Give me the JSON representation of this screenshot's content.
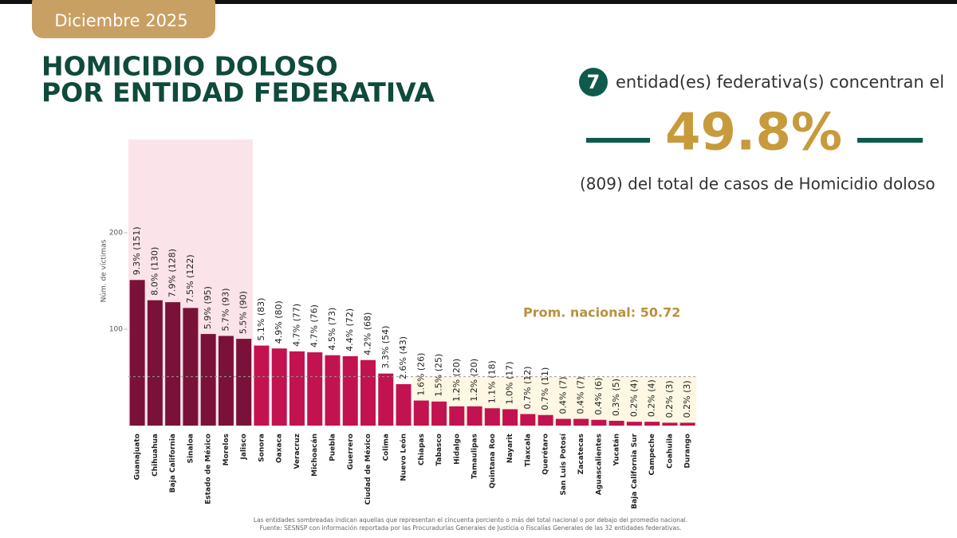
{
  "header": {
    "badge": "Diciembre 2025",
    "title_lines": [
      "HOMICIDIO DOLOSO",
      "POR ENTIDAD FEDERATIVA"
    ],
    "summary_count": "7",
    "summary_text": "entidad(es) federativa(s) concentran el",
    "summary_share": "49.8%",
    "summary_detail": "(809) del total de casos de Homicidio doloso"
  },
  "chart_data": {
    "type": "bar",
    "y_label": "Núm. de víctimas",
    "categories": [
      "Guanajuato",
      "Chihuahua",
      "Baja California",
      "Sinaloa",
      "Estado de México",
      "Morelos",
      "Jalisco",
      "Sonora",
      "Oaxaca",
      "Veracruz",
      "Michoacán",
      "Puebla",
      "Guerrero",
      "Ciudad de México",
      "Colima",
      "Nuevo León",
      "Chiapas",
      "Tabasco",
      "Hidalgo",
      "Tamaulipas",
      "Quintana Roo",
      "Nayarit",
      "Tlaxcala",
      "Querétaro",
      "San Luis Potosí",
      "Zacatecas",
      "Aguascalientes",
      "Yucatán",
      "Baja California Sur",
      "Campeche",
      "Coahuila",
      "Durango"
    ],
    "values": [
      151,
      130,
      128,
      122,
      95,
      93,
      90,
      83,
      80,
      77,
      76,
      73,
      72,
      68,
      54,
      43,
      26,
      25,
      20,
      20,
      18,
      17,
      12,
      11,
      7,
      7,
      6,
      5,
      4,
      4,
      3,
      3
    ],
    "value_labels": [
      "9.3% (151)",
      "8.0% (130)",
      "7.9% (128)",
      "7.5% (122)",
      "5.9% (95)",
      "5.7% (93)",
      "5.5% (90)",
      "5.1% (83)",
      "4.9% (80)",
      "4.7% (77)",
      "4.7% (76)",
      "4.5% (73)",
      "4.4% (72)",
      "4.2% (68)",
      "3.3% (54)",
      "2.6% (43)",
      "1.6% (26)",
      "1.5% (25)",
      "1.2% (20)",
      "1.2% (20)",
      "1.1% (18)",
      "1.0% (17)",
      "0.7% (12)",
      "0.7% (11)",
      "0.4% (7)",
      "0.4% (7)",
      "0.4% (6)",
      "0.3% (5)",
      "0.2% (4)",
      "0.2% (4)",
      "0.2% (3)",
      "0.2% (3)"
    ],
    "colors": [
      "#7a1139",
      "#7a1139",
      "#7a1139",
      "#7a1139",
      "#7a1139",
      "#7a1139",
      "#7a1139",
      "#c2124f",
      "#c2124f",
      "#c2124f",
      "#c2124f",
      "#c2124f",
      "#c2124f",
      "#c2124f",
      "#c2124f",
      "#c2124f",
      "#c2124f",
      "#c2124f",
      "#c2124f",
      "#c2124f",
      "#c2124f",
      "#c2124f",
      "#c2124f",
      "#c2124f",
      "#c2124f",
      "#c2124f",
      "#c2124f",
      "#c2124f",
      "#c2124f",
      "#c2124f",
      "#c2124f",
      "#c2124f"
    ],
    "ylim": [
      0,
      200
    ],
    "yticks": [
      100,
      200
    ],
    "average": 50.72,
    "average_label": "Prom. nacional: 50.72"
  },
  "footnotes": [
    "Las entidades sombreadas indican aquellas que representan el cincuenta porciento o más del total nacional o por debajo del promedio nacional.",
    "Fuente: SESNSP con información reportada por las Procuradurías Generales de Justicia o Fiscalías Generales de las 32 entidades federativas."
  ]
}
